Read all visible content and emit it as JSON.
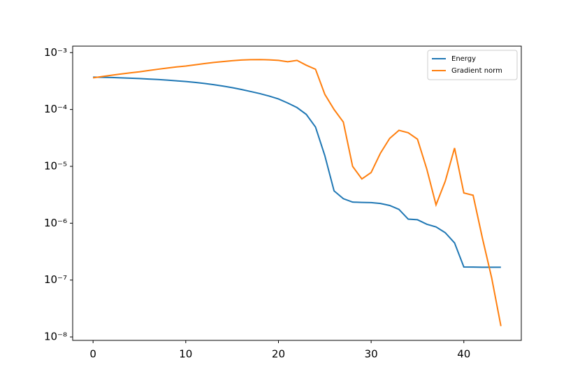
{
  "chart_data": {
    "type": "line",
    "x": [
      0,
      1,
      2,
      3,
      4,
      5,
      6,
      7,
      8,
      9,
      10,
      11,
      12,
      13,
      14,
      15,
      16,
      17,
      18,
      19,
      20,
      21,
      22,
      23,
      24,
      25,
      26,
      27,
      28,
      29,
      30,
      31,
      32,
      33,
      34,
      35,
      36,
      37,
      38,
      39,
      40,
      41,
      42,
      43,
      44
    ],
    "series": [
      {
        "name": "Energy",
        "color": "#1f77b4",
        "values": [
          0.00037,
          0.000368,
          0.000365,
          0.00036,
          0.000355,
          0.00035,
          0.000343,
          0.000336,
          0.000328,
          0.000319,
          0.00031,
          0.000299,
          0.000287,
          0.000273,
          0.000258,
          0.000242,
          0.000225,
          0.000207,
          0.00019,
          0.000172,
          0.000153,
          0.00013,
          0.000108,
          8.2e-05,
          4.9e-05,
          1.55e-05,
          3.7e-06,
          2.7e-06,
          2.35e-06,
          2.32e-06,
          2.3e-06,
          2.22e-06,
          2.05e-06,
          1.75e-06,
          1.18e-06,
          1.15e-06,
          9.6e-07,
          8.6e-07,
          6.8e-07,
          4.5e-07,
          1.7e-07,
          1.69e-07,
          1.68e-07,
          1.68e-07,
          1.68e-07
        ]
      },
      {
        "name": "Gradient norm",
        "color": "#ff7f0e",
        "values": [
          0.00036,
          0.00038,
          0.0004,
          0.00042,
          0.00044,
          0.00046,
          0.000485,
          0.00051,
          0.000535,
          0.00056,
          0.00058,
          0.00061,
          0.00064,
          0.00067,
          0.000695,
          0.00072,
          0.00074,
          0.00075,
          0.000755,
          0.000745,
          0.00073,
          0.00069,
          0.00073,
          0.0006,
          0.00051,
          0.000185,
          0.0001,
          6e-05,
          1e-05,
          6e-06,
          7.8e-06,
          1.7e-05,
          3.1e-05,
          4.3e-05,
          3.9e-05,
          3e-05,
          9e-06,
          2.1e-06,
          5.5e-06,
          2.1e-05,
          3.4e-06,
          3.1e-06,
          5.5e-07,
          1.1e-07,
          1.55e-08
        ]
      }
    ],
    "xlim": [
      -2.2,
      46.2
    ],
    "xticks": [
      0,
      10,
      20,
      30,
      40
    ],
    "ylim": [
      8.7e-09,
      0.0013
    ],
    "yscale": "log",
    "yticks": [
      {
        "value": 1e-08,
        "label": "10⁻⁸"
      },
      {
        "value": 1e-07,
        "label": "10⁻⁷"
      },
      {
        "value": 1e-06,
        "label": "10⁻⁶"
      },
      {
        "value": 1e-05,
        "label": "10⁻⁵"
      },
      {
        "value": 0.0001,
        "label": "10⁻⁴"
      },
      {
        "value": 0.001,
        "label": "10⁻³"
      }
    ],
    "legend": "upper right"
  }
}
